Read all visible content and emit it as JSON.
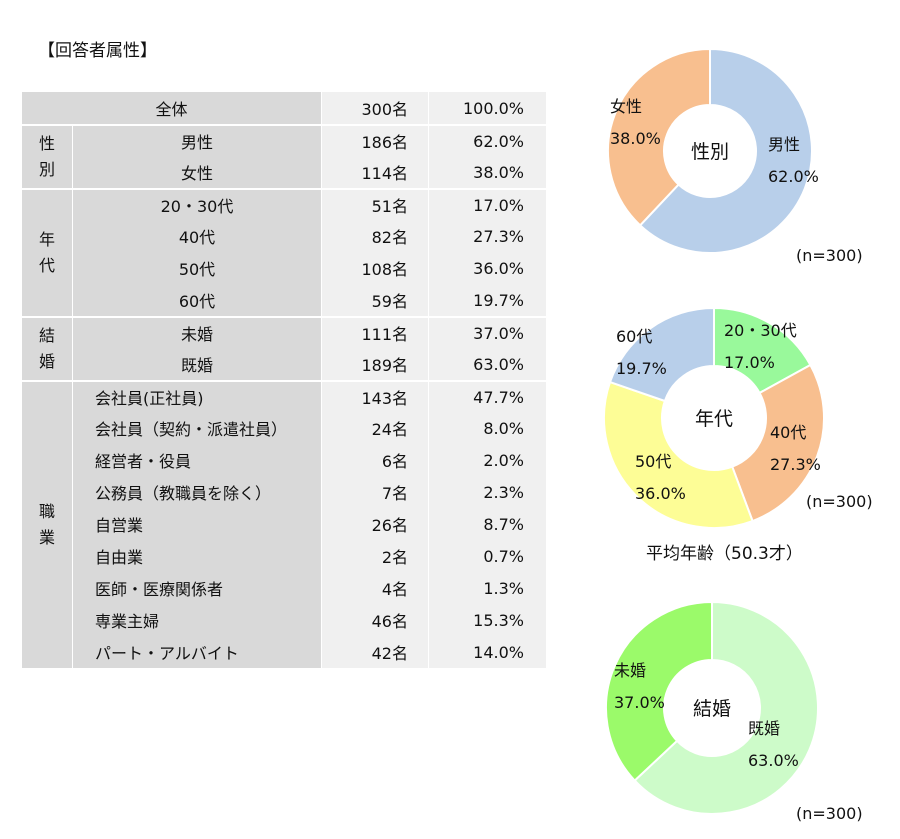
{
  "title": "【回答者属性】",
  "table": {
    "total": {
      "label": "全体",
      "count": "300名",
      "pct": "100.0%"
    },
    "groups": [
      {
        "name": "性別",
        "rows": [
          {
            "label": "男性",
            "count": "186名",
            "pct": "62.0%"
          },
          {
            "label": "女性",
            "count": "114名",
            "pct": "38.0%"
          }
        ]
      },
      {
        "name": "年代",
        "rows": [
          {
            "label": "20・30代",
            "count": "51名",
            "pct": "17.0%"
          },
          {
            "label": "40代",
            "count": "82名",
            "pct": "27.3%"
          },
          {
            "label": "50代",
            "count": "108名",
            "pct": "36.0%"
          },
          {
            "label": "60代",
            "count": "59名",
            "pct": "19.7%"
          }
        ]
      },
      {
        "name": "結婚",
        "rows": [
          {
            "label": "未婚",
            "count": "111名",
            "pct": "37.0%"
          },
          {
            "label": "既婚",
            "count": "189名",
            "pct": "63.0%"
          }
        ]
      },
      {
        "name": "職業",
        "rows": [
          {
            "label": "会社員(正社員)",
            "count": "143名",
            "pct": "47.7%"
          },
          {
            "label": "会社員（契約・派遣社員）",
            "count": "24名",
            "pct": "8.0%"
          },
          {
            "label": "経営者・役員",
            "count": "6名",
            "pct": "2.0%"
          },
          {
            "label": "公務員（教職員を除く）",
            "count": "7名",
            "pct": "2.3%"
          },
          {
            "label": "自営業",
            "count": "26名",
            "pct": "8.7%"
          },
          {
            "label": "自由業",
            "count": "2名",
            "pct": "0.7%"
          },
          {
            "label": "医師・医療関係者",
            "count": "4名",
            "pct": "1.3%"
          },
          {
            "label": "専業主婦",
            "count": "46名",
            "pct": "15.3%"
          },
          {
            "label": "パート・アルバイト",
            "count": "42名",
            "pct": "14.0%"
          }
        ]
      }
    ]
  },
  "chart_data": [
    {
      "type": "pie",
      "center_label": "性別",
      "note": "(n=300)",
      "series": [
        {
          "values": [
            62.0,
            38.0
          ]
        }
      ],
      "categories": [
        "男性",
        "女性"
      ],
      "labels": [
        "62.0%",
        "38.0%"
      ],
      "colors": [
        "#b8cfea",
        "#f8bf8f"
      ]
    },
    {
      "type": "pie",
      "center_label": "年代",
      "note": "(n=300)",
      "caption": "平均年齢（50.3才）",
      "series": [
        {
          "values": [
            17.0,
            27.3,
            36.0,
            19.7
          ]
        }
      ],
      "categories": [
        "20・30代",
        "40代",
        "50代",
        "60代"
      ],
      "labels": [
        "17.0%",
        "27.3%",
        "36.0%",
        "19.7%"
      ],
      "colors": [
        "#99f99b",
        "#f8bf8f",
        "#fdfd96",
        "#b8cfea"
      ]
    },
    {
      "type": "pie",
      "center_label": "結婚",
      "note": "(n=300)",
      "series": [
        {
          "values": [
            63.0,
            37.0
          ]
        }
      ],
      "categories": [
        "既婚",
        "未婚"
      ],
      "labels": [
        "63.0%",
        "37.0%"
      ],
      "colors": [
        "#cdfbc9",
        "#9bfa6a"
      ]
    }
  ]
}
